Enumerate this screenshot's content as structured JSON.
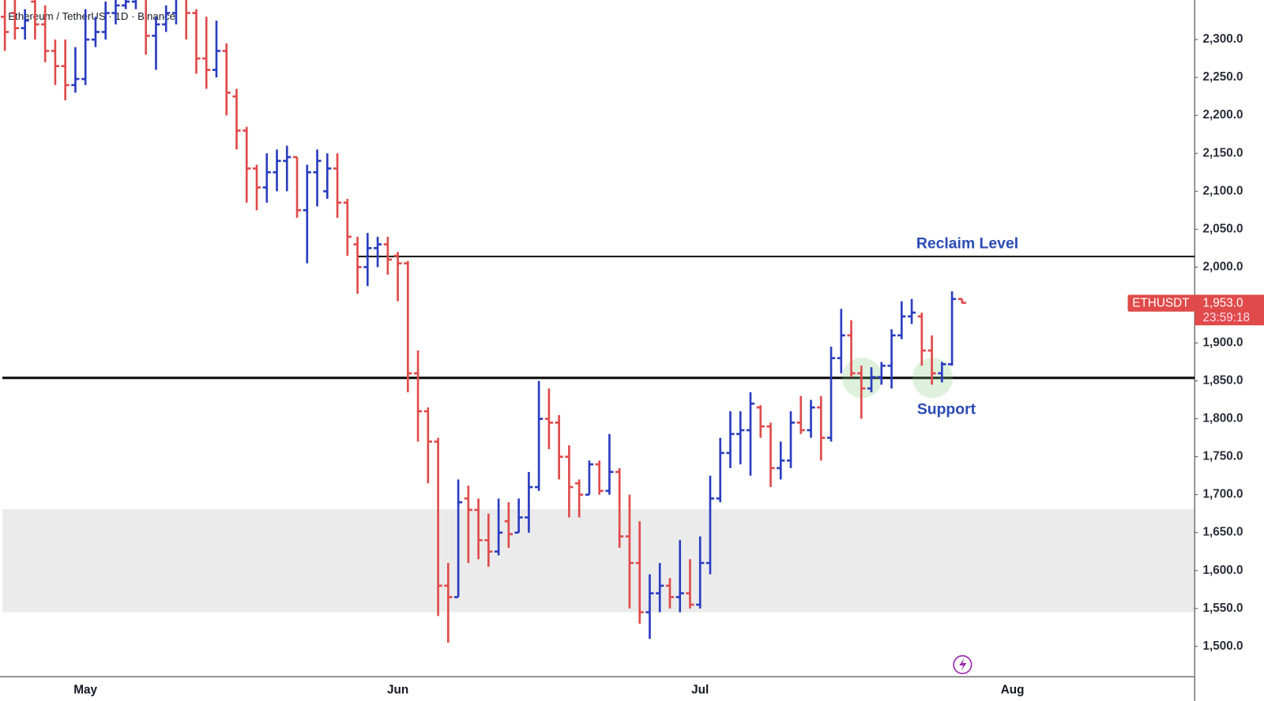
{
  "chart_data": {
    "type": "ohlc",
    "title": "Ethereum / TetherUS · 1D · Binance",
    "categories": [
      null,
      null,
      null,
      null,
      null,
      null,
      null,
      null,
      "May",
      null,
      null,
      null,
      null,
      null,
      null,
      null,
      null,
      null,
      null,
      null,
      null,
      null,
      null,
      null,
      null,
      null,
      null,
      null,
      null,
      null,
      null,
      null,
      null,
      null,
      null,
      null,
      null,
      null,
      null,
      "Jun",
      null,
      null,
      null,
      null,
      null,
      null,
      null,
      null,
      null,
      null,
      null,
      null,
      null,
      null,
      null,
      null,
      null,
      null,
      null,
      null,
      null,
      null,
      null,
      null,
      null,
      null,
      null,
      null,
      null,
      "Jul",
      null,
      null,
      null,
      null,
      null,
      null,
      null,
      null,
      null,
      null,
      null,
      null,
      null,
      null,
      null,
      null,
      null,
      null,
      null,
      null,
      null,
      null,
      null,
      null,
      null,
      null,
      null,
      null,
      null,
      null,
      "Aug",
      null,
      null,
      null,
      null,
      null,
      null,
      null,
      null,
      null,
      null,
      null,
      null,
      null,
      null,
      null,
      null,
      null,
      null
    ],
    "open": [
      2330,
      2335,
      2315,
      2350,
      2320,
      2285,
      2265,
      2240,
      2248,
      2300,
      2310,
      2335,
      2345,
      2350,
      2375,
      2305,
      2320,
      2335,
      2355,
      2335,
      2275,
      2260,
      2285,
      2225,
      2180,
      2130,
      2105,
      2125,
      2140,
      2145,
      2075,
      2125,
      2100,
      2130,
      2085,
      2030,
      2000,
      2025,
      2030,
      2015,
      2005,
      1860,
      1810,
      1770,
      1580,
      1565,
      1695,
      1680,
      1640,
      1625,
      1665,
      1650,
      1670,
      1710,
      1800,
      1795,
      1750,
      1715,
      1700,
      1740,
      1705,
      1730,
      1645,
      1610,
      1545,
      1570,
      1580,
      1565,
      1570,
      1555,
      1610,
      1695,
      1755,
      1780,
      1785,
      1815,
      1790,
      1735,
      1745,
      1795,
      1785,
      1815,
      1775,
      1880,
      1910,
      1860,
      1840,
      1855,
      1870,
      1910,
      1935,
      1935,
      1890,
      1860,
      1872,
      1958,
      null,
      null,
      null,
      null,
      null,
      null,
      null,
      null,
      null,
      null,
      null,
      null,
      null,
      null,
      null,
      null,
      null,
      null,
      null,
      null,
      null,
      null,
      null
    ],
    "high": [
      2370,
      2375,
      2340,
      2370,
      2345,
      2300,
      2300,
      2290,
      2340,
      2330,
      2350,
      2360,
      2360,
      2400,
      2390,
      2330,
      2345,
      2370,
      2370,
      2340,
      2330,
      2325,
      2295,
      2235,
      2185,
      2135,
      2150,
      2155,
      2160,
      2145,
      2135,
      2155,
      2150,
      2150,
      2090,
      2040,
      2045,
      2040,
      2040,
      2020,
      2008,
      1890,
      1815,
      1775,
      1610,
      1720,
      1712,
      1695,
      1675,
      1695,
      1690,
      1695,
      1730,
      1850,
      1840,
      1805,
      1765,
      1720,
      1745,
      1745,
      1780,
      1735,
      1700,
      1665,
      1595,
      1610,
      1590,
      1640,
      1615,
      1645,
      1725,
      1775,
      1810,
      1810,
      1835,
      1818,
      1795,
      1770,
      1810,
      1830,
      1825,
      1830,
      1895,
      1945,
      1930,
      1870,
      1868,
      1875,
      1918,
      1955,
      1958,
      1940,
      1910,
      1875,
      1968,
      1958,
      null,
      null,
      null,
      null,
      null,
      null,
      null,
      null,
      null,
      null,
      null,
      null,
      null,
      null,
      null,
      null,
      null,
      null,
      null,
      null,
      null,
      null,
      null
    ],
    "low": [
      2285,
      2300,
      2300,
      2300,
      2270,
      2240,
      2220,
      2230,
      2240,
      2290,
      2300,
      2320,
      2340,
      2340,
      2280,
      2260,
      2310,
      2320,
      2300,
      2255,
      2235,
      2250,
      2200,
      2155,
      2085,
      2075,
      2085,
      2100,
      2100,
      2065,
      2005,
      2080,
      2090,
      2065,
      2015,
      1965,
      1975,
      2000,
      1990,
      1955,
      1835,
      1770,
      1715,
      1540,
      1505,
      1565,
      1610,
      1615,
      1605,
      1620,
      1630,
      1650,
      1650,
      1705,
      1760,
      1720,
      1670,
      1670,
      1700,
      1700,
      1700,
      1630,
      1550,
      1530,
      1510,
      1545,
      1550,
      1545,
      1550,
      1550,
      1595,
      1690,
      1735,
      1740,
      1725,
      1775,
      1710,
      1720,
      1735,
      1780,
      1775,
      1745,
      1770,
      1860,
      1855,
      1800,
      1835,
      1845,
      1840,
      1905,
      1925,
      1870,
      1845,
      1848,
      1870,
      1952,
      null,
      null,
      null,
      null,
      null,
      null,
      null,
      null,
      null,
      null,
      null,
      null,
      null,
      null,
      null,
      null,
      null,
      null,
      null,
      null,
      null,
      null,
      null
    ],
    "close": [
      2310,
      2315,
      2325,
      2320,
      2285,
      2265,
      2240,
      2248,
      2300,
      2310,
      2335,
      2345,
      2350,
      2375,
      2305,
      2320,
      2335,
      2355,
      2335,
      2275,
      2260,
      2285,
      2230,
      2180,
      2130,
      2105,
      2125,
      2140,
      2145,
      2075,
      2125,
      2140,
      2130,
      2085,
      2040,
      2000,
      2025,
      2030,
      2010,
      2005,
      1860,
      1810,
      1770,
      1580,
      1565,
      1690,
      1680,
      1640,
      1625,
      1650,
      1648,
      1670,
      1710,
      1800,
      1795,
      1750,
      1710,
      1700,
      1740,
      1705,
      1730,
      1645,
      1610,
      1545,
      1570,
      1580,
      1565,
      1570,
      1555,
      1610,
      1695,
      1755,
      1780,
      1785,
      1820,
      1790,
      1735,
      1745,
      1795,
      1785,
      1815,
      1775,
      1880,
      1910,
      1860,
      1840,
      1855,
      1870,
      1910,
      1935,
      1940,
      1890,
      1860,
      1872,
      1958,
      1953,
      null,
      null,
      null,
      null,
      null,
      null,
      null,
      null,
      null,
      null,
      null,
      null,
      null,
      null,
      null,
      null,
      null,
      null,
      null,
      null,
      null,
      null,
      null
    ],
    "up_color": "#2a3dc0",
    "down_color": "#e04a4a",
    "ylim": [
      1460,
      2352
    ],
    "yticks": [
      {
        "value": 1500,
        "label": "1,500.0"
      },
      {
        "value": 1550,
        "label": "1,550.0"
      },
      {
        "value": 1600,
        "label": "1,600.0"
      },
      {
        "value": 1650,
        "label": "1,650.0"
      },
      {
        "value": 1700,
        "label": "1,700.0"
      },
      {
        "value": 1750,
        "label": "1,750.0"
      },
      {
        "value": 1800,
        "label": "1,800.0"
      },
      {
        "value": 1850,
        "label": "1,850.0"
      },
      {
        "value": 1900,
        "label": "1,900.0"
      },
      {
        "value": 1950,
        "label": "1,950.0"
      },
      {
        "value": 2000,
        "label": "2,000.0"
      },
      {
        "value": 2050,
        "label": "2,050.0"
      },
      {
        "value": 2100,
        "label": "2,100.0"
      },
      {
        "value": 2150,
        "label": "2,150.0"
      },
      {
        "value": 2200,
        "label": "2,200.0"
      },
      {
        "value": 2250,
        "label": "2,250.0"
      },
      {
        "value": 2300,
        "label": "2,300.0"
      }
    ],
    "zone": [
      1545,
      1681
    ],
    "levels": [
      {
        "label": "Reclaim Level",
        "value": 2014
      },
      {
        "label": "Support",
        "value": 1854
      }
    ],
    "last_price": {
      "symbol": "ETHUSDT",
      "value": 1953,
      "label": "1,953.0",
      "countdown": "23:59:18"
    }
  }
}
